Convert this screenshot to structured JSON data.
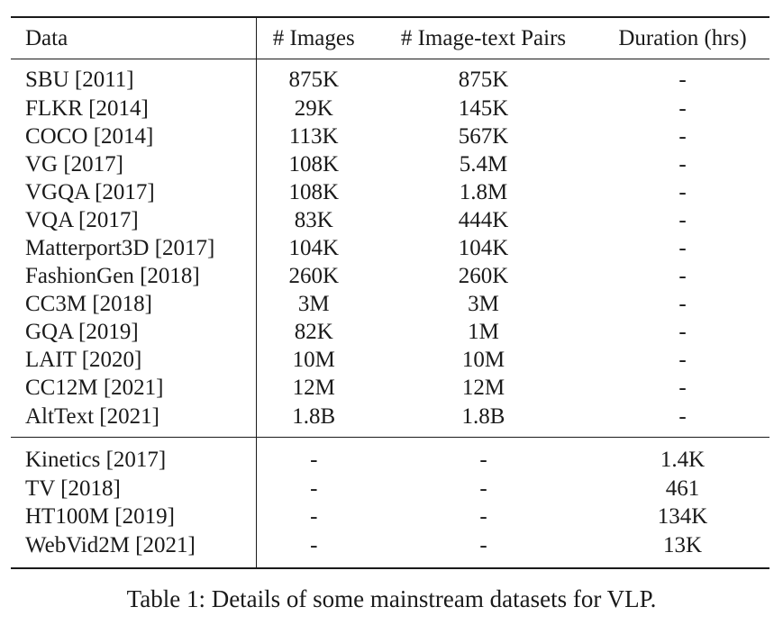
{
  "table": {
    "headers": [
      "Data",
      "# Images",
      "# Image-text Pairs",
      "Duration (hrs)"
    ],
    "image_datasets": [
      {
        "name": "SBU [2011]",
        "images": "875K",
        "pairs": "875K",
        "duration": "-"
      },
      {
        "name": "FLKR [2014]",
        "images": "29K",
        "pairs": "145K",
        "duration": "-"
      },
      {
        "name": "COCO [2014]",
        "images": "113K",
        "pairs": "567K",
        "duration": "-"
      },
      {
        "name": "VG [2017]",
        "images": "108K",
        "pairs": "5.4M",
        "duration": "-"
      },
      {
        "name": "VGQA [2017]",
        "images": "108K",
        "pairs": "1.8M",
        "duration": "-"
      },
      {
        "name": "VQA [2017]",
        "images": "83K",
        "pairs": "444K",
        "duration": "-"
      },
      {
        "name": "Matterport3D [2017]",
        "images": "104K",
        "pairs": "104K",
        "duration": "-"
      },
      {
        "name": "FashionGen [2018]",
        "images": "260K",
        "pairs": "260K",
        "duration": "-"
      },
      {
        "name": "CC3M [2018]",
        "images": "3M",
        "pairs": "3M",
        "duration": "-"
      },
      {
        "name": "GQA [2019]",
        "images": "82K",
        "pairs": "1M",
        "duration": "-"
      },
      {
        "name": "LAIT [2020]",
        "images": "10M",
        "pairs": "10M",
        "duration": "-"
      },
      {
        "name": "CC12M [2021]",
        "images": "12M",
        "pairs": "12M",
        "duration": "-"
      },
      {
        "name": "AltText [2021]",
        "images": "1.8B",
        "pairs": "1.8B",
        "duration": "-"
      }
    ],
    "video_datasets": [
      {
        "name": "Kinetics [2017]",
        "images": "-",
        "pairs": "-",
        "duration": "1.4K"
      },
      {
        "name": "TV [2018]",
        "images": "-",
        "pairs": "-",
        "duration": "461"
      },
      {
        "name": "HT100M [2019]",
        "images": "-",
        "pairs": "-",
        "duration": "134K"
      },
      {
        "name": "WebVid2M [2021]",
        "images": "-",
        "pairs": "-",
        "duration": "13K"
      }
    ]
  },
  "caption": "Table 1: Details of some mainstream datasets for VLP."
}
